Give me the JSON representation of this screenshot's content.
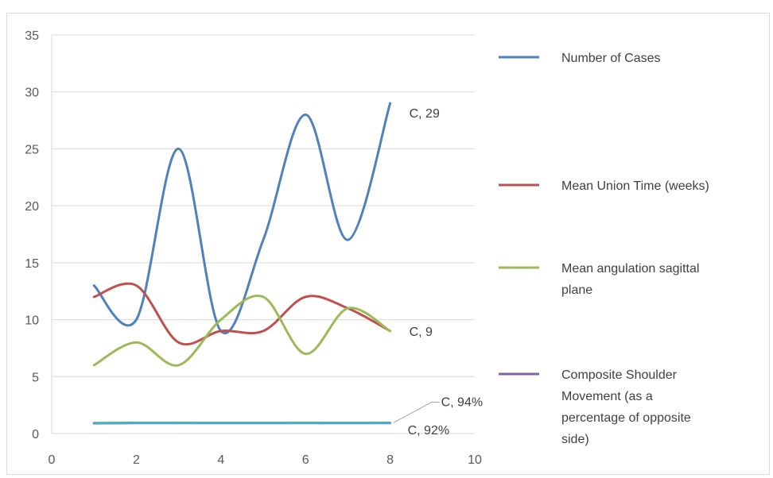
{
  "chart_data": {
    "type": "line",
    "title": "",
    "xlabel": "",
    "ylabel": "",
    "xlim": [
      0,
      10
    ],
    "ylim": [
      0,
      35
    ],
    "x_ticks": [
      0,
      2,
      4,
      6,
      8,
      10
    ],
    "y_ticks": [
      0,
      5,
      10,
      15,
      20,
      25,
      30,
      35
    ],
    "grid": "horizontal",
    "legend_position": "right",
    "smooth": true,
    "series": [
      {
        "name": "Number of Cases",
        "color": "#4f81bd",
        "x": [
          1,
          2,
          3,
          4,
          5,
          6,
          7,
          8
        ],
        "values": [
          13,
          10,
          25,
          9,
          17,
          28,
          17,
          29
        ],
        "end_label": "C, 29"
      },
      {
        "name": "Mean Union Time (weeks)",
        "color": "#c0504d",
        "x": [
          1,
          2,
          3,
          4,
          5,
          6,
          7,
          8
        ],
        "values": [
          12,
          13,
          8,
          9,
          9,
          12,
          11,
          9
        ],
        "end_label": ""
      },
      {
        "name": "Mean angulation sagittal plane",
        "color": "#9bbb59",
        "x": [
          1,
          2,
          3,
          4,
          5,
          6,
          7,
          8
        ],
        "values": [
          6,
          8,
          6,
          10,
          12,
          7,
          11,
          9
        ],
        "end_label": "C, 9"
      },
      {
        "name": "Composite Shoulder Movement (as a percentage of opposite side)",
        "color": "#8064a2",
        "x": [
          1,
          2,
          3,
          4,
          5,
          6,
          7,
          8
        ],
        "values": [
          0.9,
          0.92,
          0.92,
          0.92,
          0.92,
          0.92,
          0.92,
          0.92
        ],
        "end_label": "C, 92%"
      },
      {
        "name": "",
        "color": "#4bacc6",
        "x": [
          1,
          2,
          3,
          4,
          5,
          6,
          7,
          8
        ],
        "values": [
          0.92,
          0.94,
          0.94,
          0.93,
          0.93,
          0.94,
          0.93,
          0.94
        ],
        "end_label": "C, 94%"
      }
    ],
    "legend": [
      {
        "label_lines": [
          "Number of Cases"
        ],
        "color": "#4f81bd"
      },
      {
        "label_lines": [
          "Mean Union Time (weeks)"
        ],
        "color": "#c0504d"
      },
      {
        "label_lines": [
          "Mean angulation sagittal",
          "plane"
        ],
        "color": "#9bbb59"
      },
      {
        "label_lines": [
          "Composite Shoulder",
          "Movement (as a",
          "percentage of opposite",
          "side)"
        ],
        "color": "#8064a2"
      }
    ]
  }
}
